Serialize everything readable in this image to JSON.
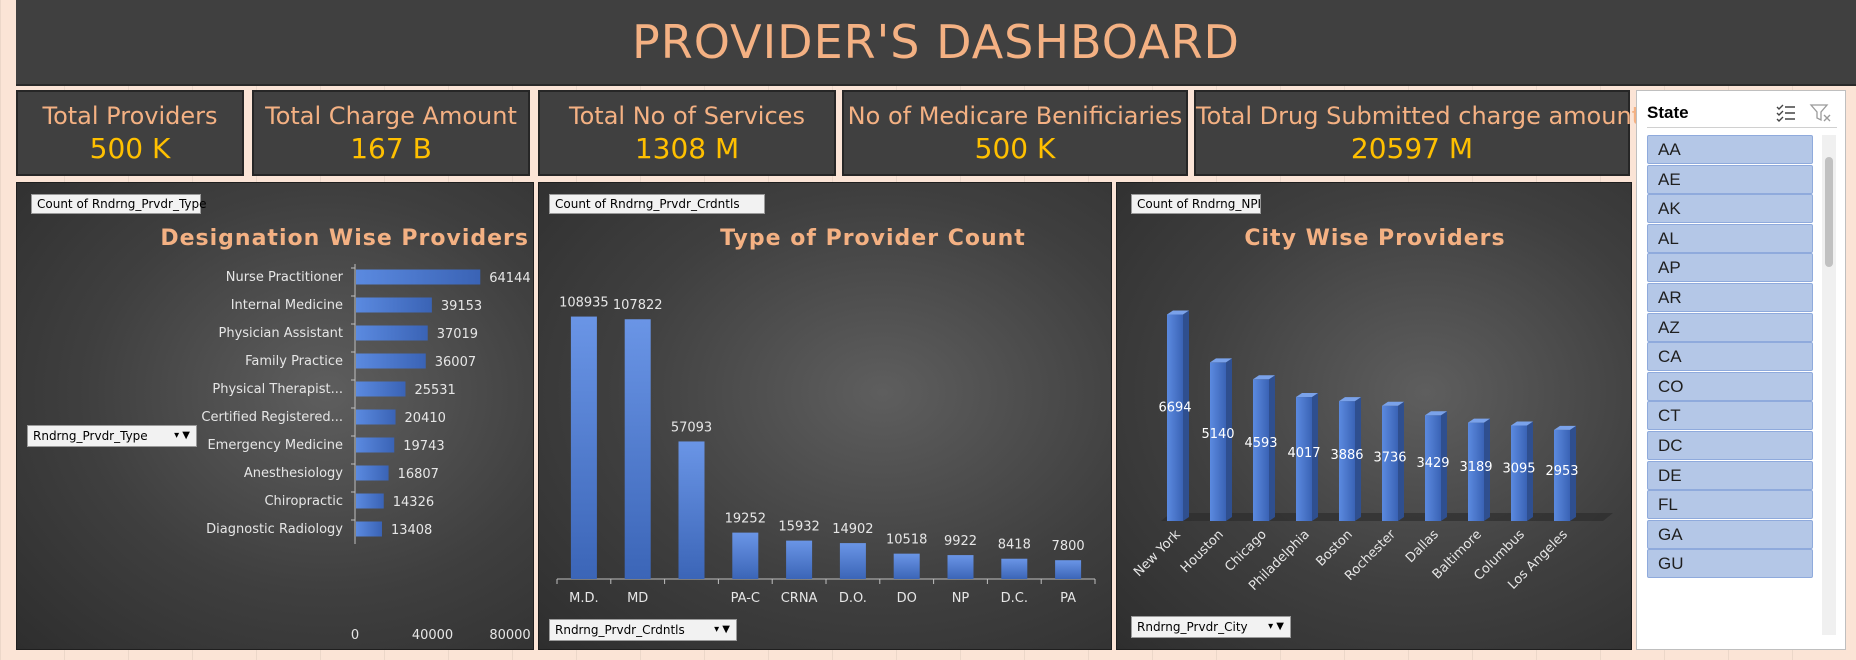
{
  "title": "PROVIDER'S DASHBOARD",
  "kpis": [
    {
      "label": "Total Providers",
      "value": "500 K"
    },
    {
      "label": "Total Charge Amount",
      "value": "167 B"
    },
    {
      "label": "Total No of Services",
      "value": "1308 M"
    },
    {
      "label": "No of Medicare Benificiaries",
      "value": "500 K"
    },
    {
      "label": "Total Drug Submitted charge amount",
      "value": "20597 M"
    }
  ],
  "colors": {
    "accent": "#f4b183",
    "kpi_value": "#ffc000",
    "bar": "#4472c4",
    "bar_dark": "#2f4f8f",
    "panel": "#404040",
    "slicer_item": "#b4c7e7"
  },
  "panels": {
    "designation": {
      "field_button": "Count  of Rndrng_Prvdr_Type",
      "axis_field": "Rndrng_Prvdr_Type"
    },
    "type_count": {
      "field_button": "Count  of Rndrng_Prvdr_Crdntls",
      "axis_field": "Rndrng_Prvdr_Crdntls"
    },
    "city": {
      "field_button": "Count  of Rndrng_NPI",
      "axis_field": "Rndrng_Prvdr_City"
    }
  },
  "chart_data": [
    {
      "type": "bar",
      "orientation": "horizontal",
      "title": "Designation Wise Providers",
      "categories": [
        "Nurse Practitioner",
        "Internal Medicine",
        "Physician Assistant",
        "Family Practice",
        "Physical Therapist...",
        "Certified Registered...",
        "Emergency Medicine",
        "Anesthesiology",
        "Chiropractic",
        "Diagnostic Radiology"
      ],
      "values": [
        64144,
        39153,
        37019,
        36007,
        25531,
        20410,
        19743,
        16807,
        14326,
        13408
      ],
      "xlim": [
        0,
        80000
      ],
      "x_ticks": [
        "0",
        "40000",
        "80000"
      ],
      "grid": false,
      "legend": "none"
    },
    {
      "type": "bar",
      "orientation": "vertical",
      "title": "Type of Provider Count",
      "categories": [
        "M.D.",
        "MD",
        "",
        "PA-C",
        "CRNA",
        "D.O.",
        "DO",
        "NP",
        "D.C.",
        "PA"
      ],
      "values": [
        108935,
        107822,
        57093,
        19252,
        15932,
        14902,
        10518,
        9922,
        8418,
        7800
      ],
      "grid": false,
      "legend": "none"
    },
    {
      "type": "bar",
      "orientation": "vertical",
      "style": "3d-column",
      "title": "City Wise Providers",
      "categories": [
        "New York",
        "Houston",
        "Chicago",
        "Philadelphia",
        "Boston",
        "Rochester",
        "Dallas",
        "Baltimore",
        "Columbus",
        "Los Angeles"
      ],
      "values": [
        6694,
        5140,
        4593,
        4017,
        3886,
        3736,
        3429,
        3189,
        3095,
        2953
      ],
      "grid": false,
      "legend": "none"
    }
  ],
  "slicer": {
    "title": "State",
    "items": [
      "AA",
      "AE",
      "AK",
      "AL",
      "AP",
      "AR",
      "AZ",
      "CA",
      "CO",
      "CT",
      "DC",
      "DE",
      "FL",
      "GA",
      "GU"
    ]
  }
}
